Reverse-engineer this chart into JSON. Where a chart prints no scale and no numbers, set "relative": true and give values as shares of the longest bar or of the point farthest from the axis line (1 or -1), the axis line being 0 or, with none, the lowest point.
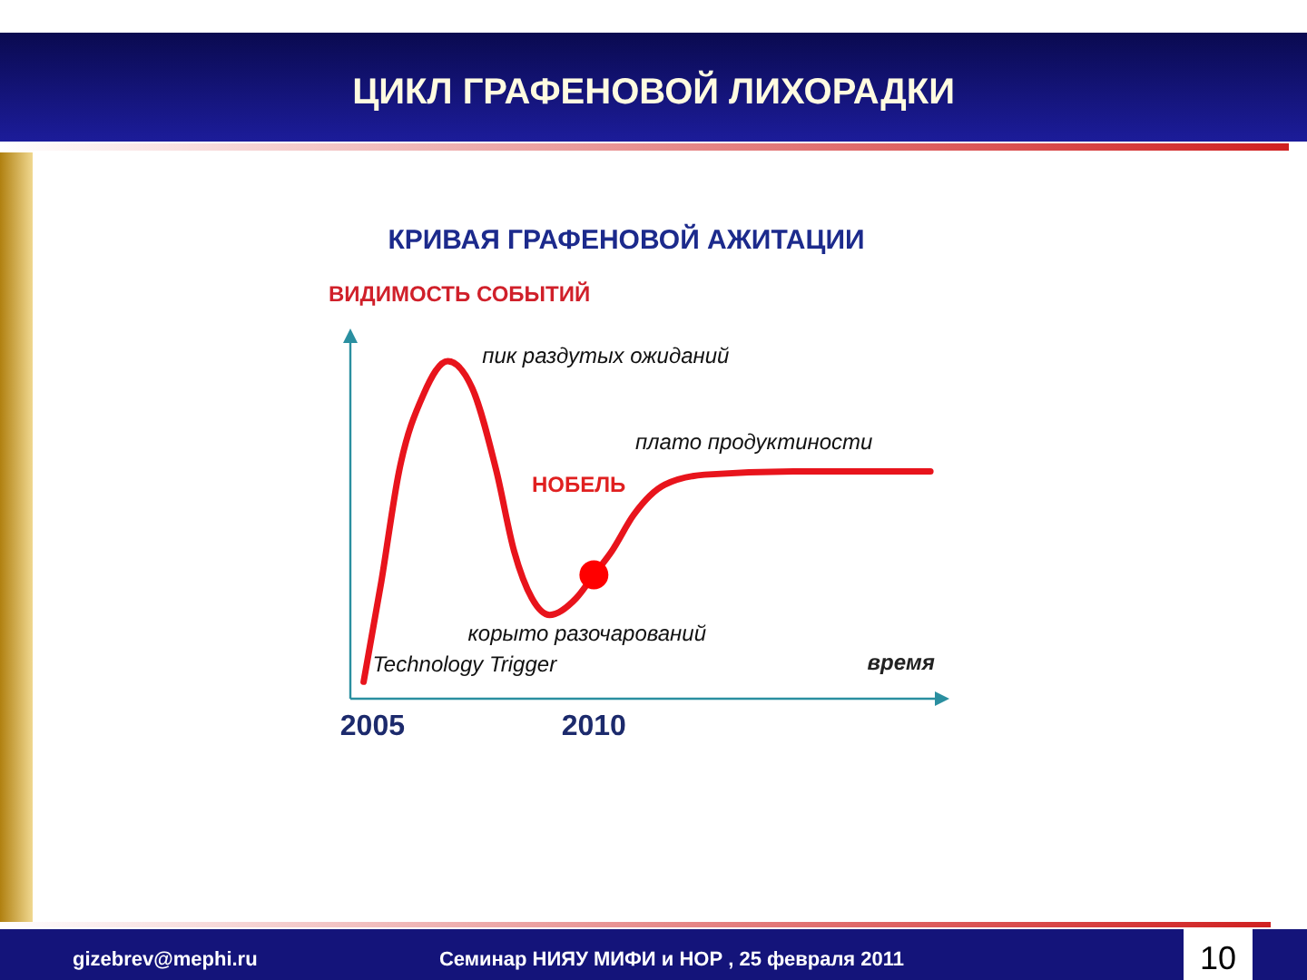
{
  "chart_data": {
    "type": "line",
    "title": "ЦИКЛ  ГРАФЕНОВОЙ  ЛИХОРАДКИ",
    "subtitle": "КРИВАЯ ГРАФЕНОВОЙ АЖИТАЦИИ",
    "ylabel": "ВИДИМОСТЬ СОБЫТИЙ",
    "xlabel": "время",
    "relative": true,
    "xlim": [
      2004.5,
      2017.7
    ],
    "xticks": [
      2005,
      2010
    ],
    "grid": false,
    "marker": "none",
    "line_style": "solid",
    "series": [
      {
        "color": "#e8141c",
        "x": [
          2004.8,
          2005.2,
          2005.6,
          2006.15,
          2006.7,
          2007.25,
          2007.8,
          2008.2,
          2008.6,
          2009.0,
          2009.6,
          2010.0,
          2010.4,
          2010.9,
          2011.6,
          2012.5,
          2014.5,
          2017.6
        ],
        "values": [
          0.04,
          0.34,
          0.67,
          0.9,
          1.0,
          0.92,
          0.67,
          0.43,
          0.29,
          0.24,
          0.29,
          0.36,
          0.43,
          0.54,
          0.63,
          0.66,
          0.67,
          0.67
        ]
      },
      {
        "type": "scatter",
        "color": "#ff0000",
        "marker": "circle",
        "x": [
          2010.0
        ],
        "values": [
          0.36
        ]
      }
    ],
    "annotations": [
      {
        "text": "пик  раздутых ожиданий",
        "x": 2006.7,
        "y": 1.0
      },
      {
        "text": "плато продуктиности",
        "x": 2014.5,
        "y": 0.67
      },
      {
        "text": "корыто разочарований",
        "x": 2009.0,
        "y": 0.24
      },
      {
        "text": "Technology Trigger",
        "x": 2005.0,
        "y": 0.07
      },
      "НОБЕЛЬ",
      "gizebrev@mephi.ru",
      "Семинар  НИЯУ МИФИ и НОР ,    25 февраля  2011",
      "10"
    ]
  }
}
